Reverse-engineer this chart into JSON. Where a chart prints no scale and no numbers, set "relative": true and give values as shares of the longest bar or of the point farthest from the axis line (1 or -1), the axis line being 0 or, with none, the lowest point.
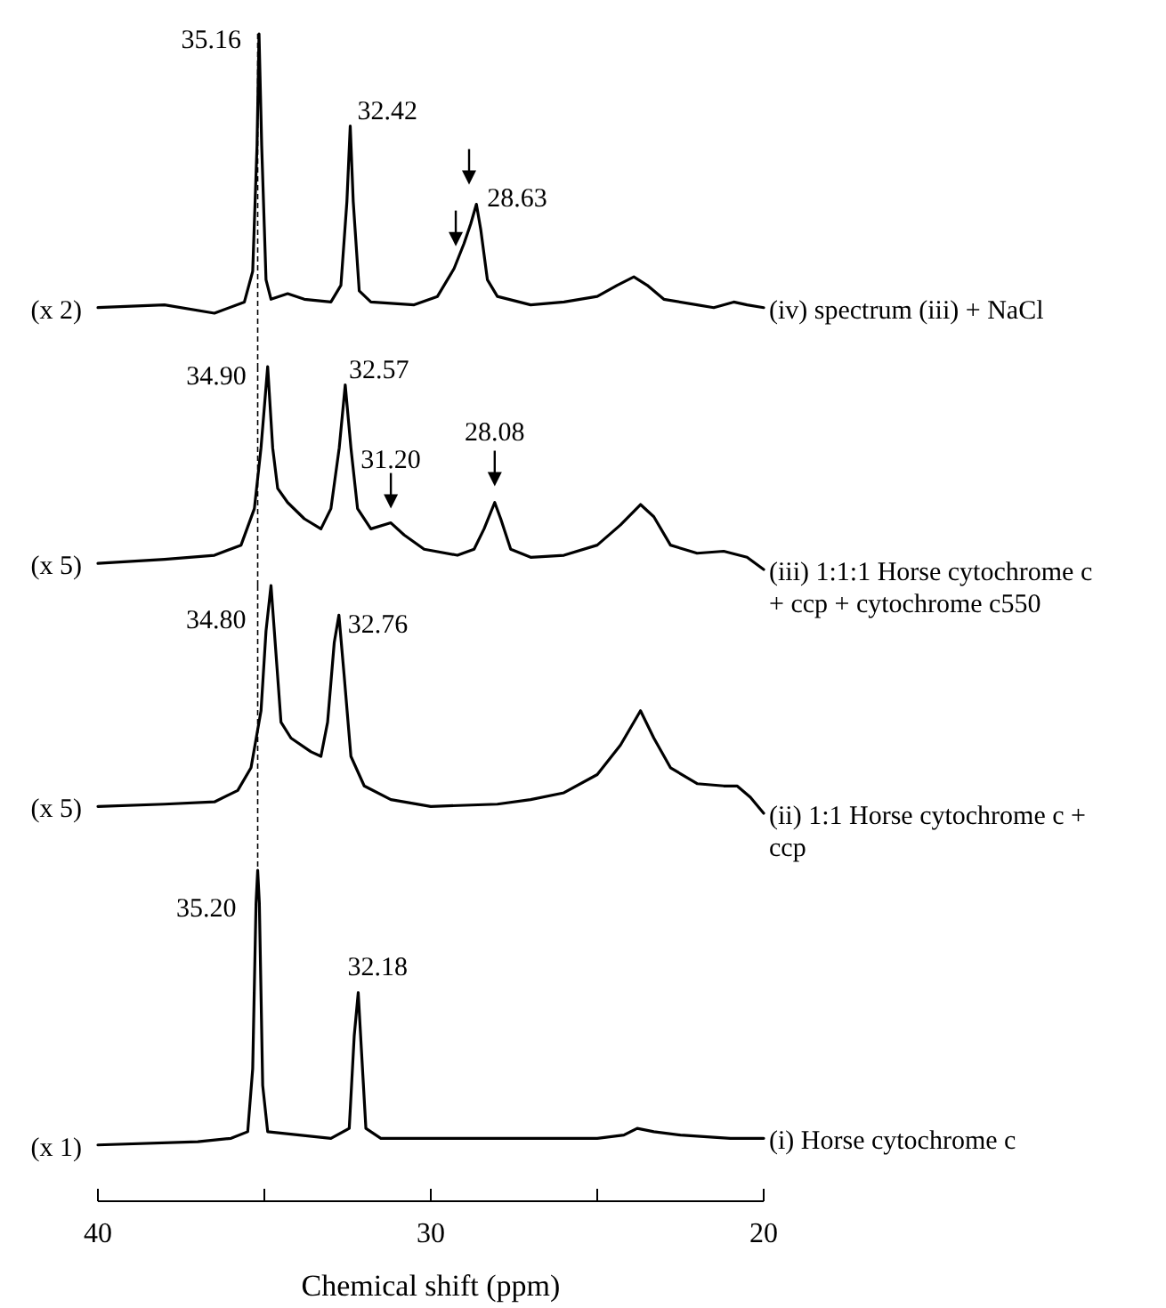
{
  "chart_data": [
    {
      "type": "line",
      "relative": true,
      "xlim": [
        40,
        20
      ],
      "tick_labels": false,
      "color": "#000000",
      "x": [
        40,
        38,
        36.5,
        35.6,
        35.35,
        35.22,
        35.16,
        35.08,
        34.95,
        34.8,
        34.3,
        33.8,
        33.0,
        32.7,
        32.52,
        32.42,
        32.33,
        32.15,
        31.8,
        30.5,
        29.8,
        29.3,
        29.0,
        28.8,
        28.63,
        28.5,
        28.3,
        28.0,
        27,
        26,
        25,
        24.4,
        23.9,
        23.5,
        23,
        22,
        21.5,
        20.9,
        20.5,
        20
      ],
      "values": [
        0.02,
        0.03,
        0,
        0.04,
        0.15,
        0.6,
        1.0,
        0.6,
        0.12,
        0.05,
        0.07,
        0.05,
        0.04,
        0.1,
        0.4,
        0.67,
        0.4,
        0.08,
        0.04,
        0.03,
        0.06,
        0.16,
        0.25,
        0.32,
        0.39,
        0.3,
        0.12,
        0.06,
        0.03,
        0.04,
        0.06,
        0.1,
        0.13,
        0.1,
        0.05,
        0.03,
        0.02,
        0.04,
        0.03,
        0.02
      ],
      "ref_lines": [
        {
          "axis": "x",
          "value": 35.2,
          "line_style": "dashed"
        }
      ],
      "annotations": [
        "(x 2)",
        "(iv) spectrum (iii) + NaCl",
        {
          "text": "35.16",
          "x": 35.16,
          "y": 1.0
        },
        {
          "text": "32.42",
          "x": 32.42,
          "y": 0.67
        },
        {
          "text": "28.63",
          "x": 28.63,
          "y": 0.39
        }
      ]
    },
    {
      "type": "line",
      "relative": true,
      "xlim": [
        40,
        20
      ],
      "tick_labels": false,
      "color": "#000000",
      "x": [
        40,
        38,
        36.5,
        35.7,
        35.3,
        35.1,
        34.9,
        34.75,
        34.6,
        34.3,
        33.8,
        33.3,
        33.0,
        32.75,
        32.57,
        32.4,
        32.2,
        31.8,
        31.2,
        30.8,
        30.2,
        29.2,
        28.7,
        28.4,
        28.08,
        27.9,
        27.6,
        27,
        26,
        25,
        24.3,
        23.7,
        23.3,
        22.8,
        22,
        21.2,
        20.5,
        20
      ],
      "values": [
        0.03,
        0.05,
        0.07,
        0.12,
        0.3,
        0.6,
        1.0,
        0.6,
        0.4,
        0.33,
        0.25,
        0.2,
        0.3,
        0.6,
        0.91,
        0.6,
        0.3,
        0.2,
        0.23,
        0.17,
        0.1,
        0.07,
        0.1,
        0.2,
        0.33,
        0.25,
        0.1,
        0.06,
        0.07,
        0.12,
        0.22,
        0.32,
        0.26,
        0.12,
        0.08,
        0.09,
        0.06,
        0
      ],
      "ref_lines": [
        {
          "axis": "x",
          "value": 35.2,
          "line_style": "dashed"
        }
      ],
      "annotations": [
        "(x 5)",
        "(iii) 1:1:1 Horse cytochrome c + ccp + cytochrome c550",
        {
          "text": "34.90",
          "x": 34.9,
          "y": 1.0
        },
        {
          "text": "32.57",
          "x": 32.57,
          "y": 0.91
        },
        {
          "text": "31.20",
          "x": 31.2,
          "y": 0.23
        },
        {
          "text": "28.08",
          "x": 28.08,
          "y": 0.33
        }
      ]
    },
    {
      "type": "line",
      "relative": true,
      "xlim": [
        40,
        20
      ],
      "tick_labels": false,
      "color": "#000000",
      "x": [
        40,
        38,
        36.5,
        35.8,
        35.4,
        35.1,
        34.95,
        34.8,
        34.65,
        34.5,
        34.2,
        33.6,
        33.3,
        33.1,
        32.9,
        32.76,
        32.6,
        32.4,
        32,
        31.2,
        30,
        28,
        27,
        26,
        25,
        24.3,
        23.7,
        23.3,
        22.8,
        22,
        21.2,
        20.8,
        20.4,
        20
      ],
      "values": [
        0.03,
        0.04,
        0.05,
        0.1,
        0.2,
        0.45,
        0.8,
        1.0,
        0.7,
        0.4,
        0.33,
        0.27,
        0.25,
        0.4,
        0.75,
        0.87,
        0.6,
        0.25,
        0.12,
        0.06,
        0.03,
        0.04,
        0.06,
        0.09,
        0.17,
        0.3,
        0.45,
        0.33,
        0.2,
        0.13,
        0.12,
        0.12,
        0.07,
        0
      ],
      "ref_lines": [
        {
          "axis": "x",
          "value": 35.2,
          "line_style": "dashed"
        }
      ],
      "annotations": [
        "(x 5)",
        "(ii) 1:1 Horse cytochrome c + ccp",
        {
          "text": "34.80",
          "x": 34.8,
          "y": 1.0
        },
        {
          "text": "32.76",
          "x": 32.76,
          "y": 0.87
        }
      ]
    },
    {
      "type": "line",
      "relative": true,
      "xlim": [
        40,
        20
      ],
      "tick_labels": "x",
      "color": "#000000",
      "xlabel": "Chemical shift (ppm)",
      "xticks": [
        40,
        {
          "value": 35,
          "label": null
        },
        30,
        {
          "value": 25,
          "label": null
        },
        20
      ],
      "x": [
        40,
        37,
        36,
        35.5,
        35.35,
        35.25,
        35.2,
        35.15,
        35.05,
        34.9,
        33,
        32.45,
        32.3,
        32.18,
        32.08,
        31.95,
        31.5,
        27,
        25,
        24.2,
        23.8,
        23.3,
        22.5,
        21,
        20
      ],
      "values": [
        0.17,
        0.18,
        0.19,
        0.21,
        0.4,
        0.9,
        1.0,
        0.9,
        0.35,
        0.21,
        0.19,
        0.22,
        0.5,
        0.63,
        0.45,
        0.22,
        0.19,
        0.19,
        0.19,
        0.2,
        0.22,
        0.21,
        0.2,
        0.19,
        0.19
      ],
      "annotations": [
        "(x 1)",
        "(i) Horse cytochrome c",
        {
          "text": "35.20",
          "x": 35.2,
          "y": 1.0
        },
        {
          "text": "32.18",
          "x": 32.18,
          "y": 0.63
        }
      ]
    }
  ]
}
